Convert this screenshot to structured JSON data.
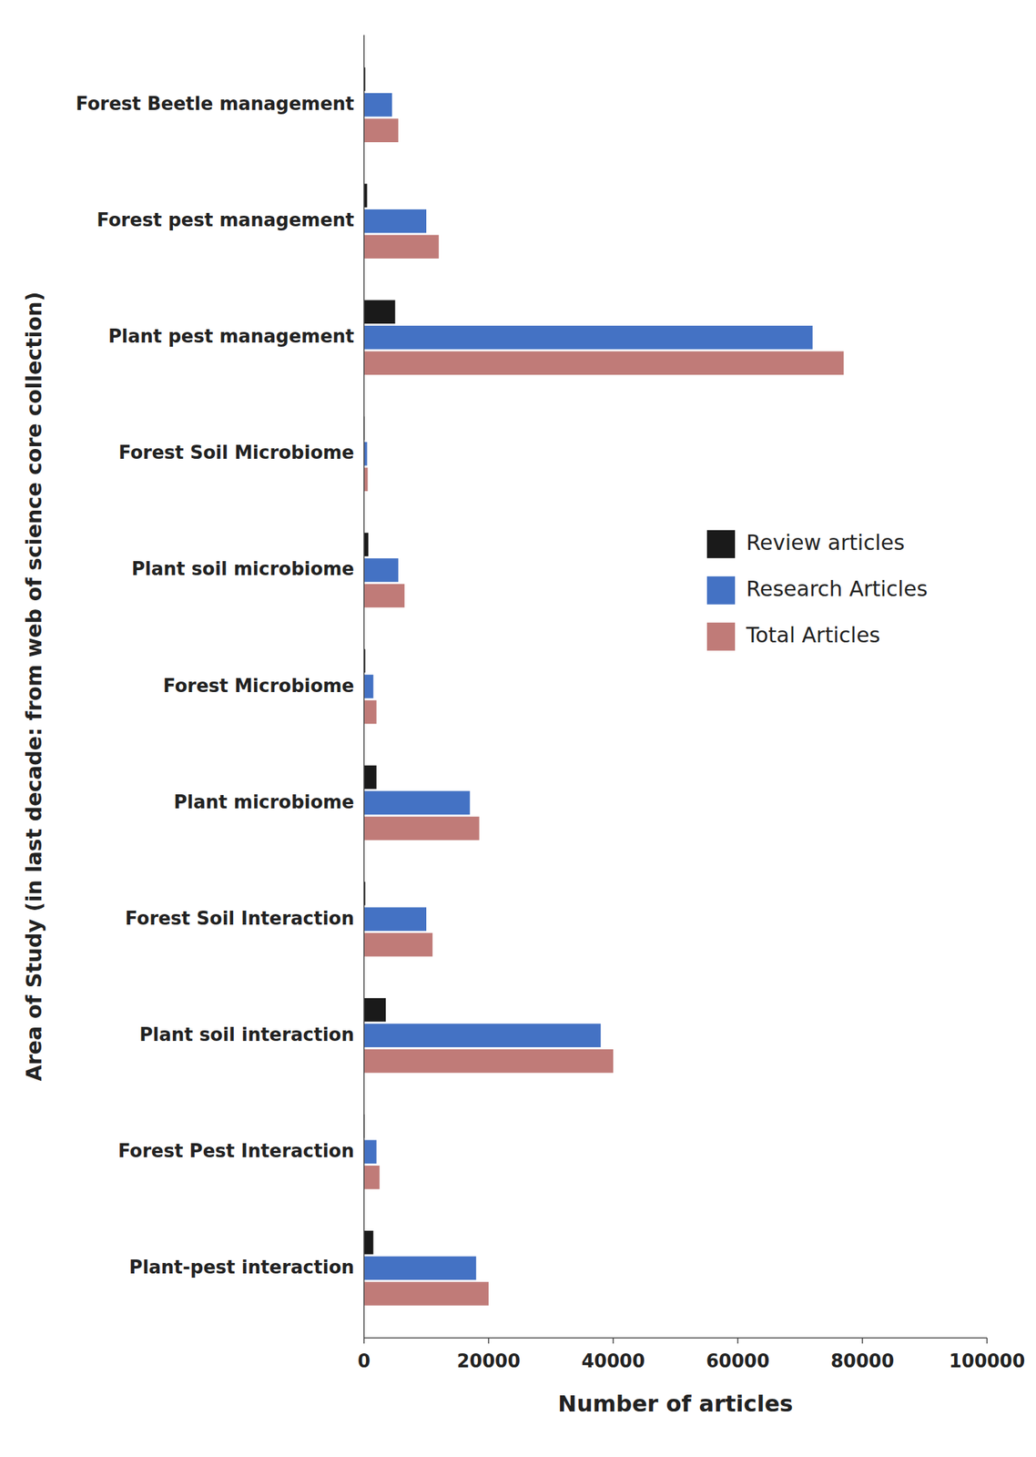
{
  "chart_data": {
    "type": "bar",
    "orientation": "horizontal",
    "categories": [
      "Plant-pest interaction",
      "Forest Pest Interaction",
      "Plant soil interaction",
      "Forest Soil Interaction",
      "Plant microbiome",
      "Forest Microbiome",
      "Plant soil microbiome",
      "Forest Soil Microbiome",
      "Plant pest management",
      "Forest pest management",
      "Forest Beetle management"
    ],
    "series": [
      {
        "name": "Review articles",
        "color": "#1a1a1a",
        "values": [
          1500,
          100,
          3500,
          200,
          2000,
          200,
          700,
          100,
          5000,
          500,
          200
        ]
      },
      {
        "name": "Research Articles",
        "color": "#4472c4",
        "values": [
          18000,
          2000,
          38000,
          10000,
          17000,
          1500,
          5500,
          500,
          72000,
          10000,
          4500
        ]
      },
      {
        "name": "Total Articles",
        "color": "#c07b78",
        "values": [
          20000,
          2500,
          40000,
          11000,
          18500,
          2000,
          6500,
          600,
          77000,
          12000,
          5500
        ]
      }
    ],
    "xlabel": "Number of articles",
    "ylabel": "Area of Study (in last decade: from web of science core collection)",
    "xlim": [
      0,
      100000
    ],
    "xticks": [
      0,
      20000,
      40000,
      60000,
      80000,
      100000
    ],
    "grid": false,
    "legend": "right"
  }
}
